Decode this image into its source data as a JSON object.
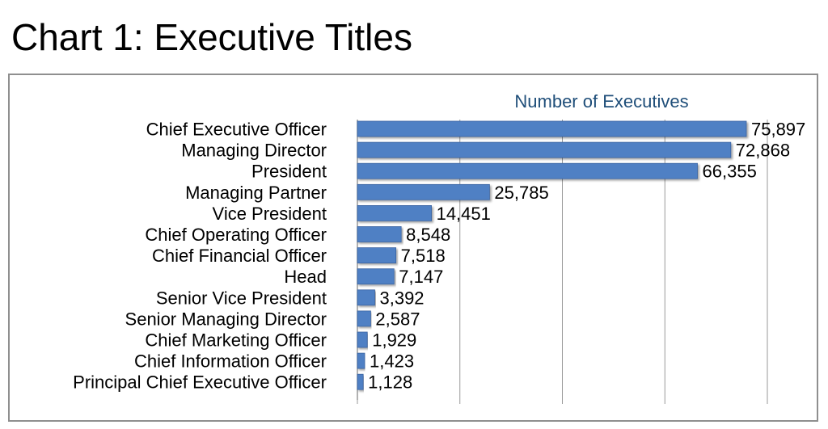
{
  "page": {
    "title": "Chart 1: Executive Titles"
  },
  "chart_data": {
    "type": "bar",
    "orientation": "horizontal",
    "title": "Number of Executives",
    "xlabel": "",
    "ylabel": "",
    "categories": [
      "Chief Executive Officer",
      "Managing Director",
      "President",
      "Managing Partner",
      "Vice President",
      "Chief Operating Officer",
      "Chief Financial Officer",
      "Head",
      "Senior Vice President",
      "Senior Managing Director",
      "Chief Marketing Officer",
      "Chief Information Officer",
      "Principal Chief Executive Officer"
    ],
    "values": [
      75897,
      72868,
      66355,
      25785,
      14451,
      8548,
      7518,
      7147,
      3392,
      2587,
      1929,
      1423,
      1128
    ],
    "value_labels": [
      "75,897",
      "72,868",
      "66,355",
      "25,785",
      "14,451",
      "8,548",
      "7,518",
      "7,147",
      "3,392",
      "2,587",
      "1,929",
      "1,423",
      "1,128"
    ],
    "xlim": [
      0,
      80000
    ],
    "x_gridlines": [
      0,
      20000,
      40000,
      60000,
      80000
    ],
    "grid": true,
    "tick_labels_shown": false,
    "legend": "none",
    "bar_color": "#4f80c4",
    "bar_edge_color": "#3a63a0",
    "title_color": "#1f4e79",
    "grid_color": "#999999"
  }
}
